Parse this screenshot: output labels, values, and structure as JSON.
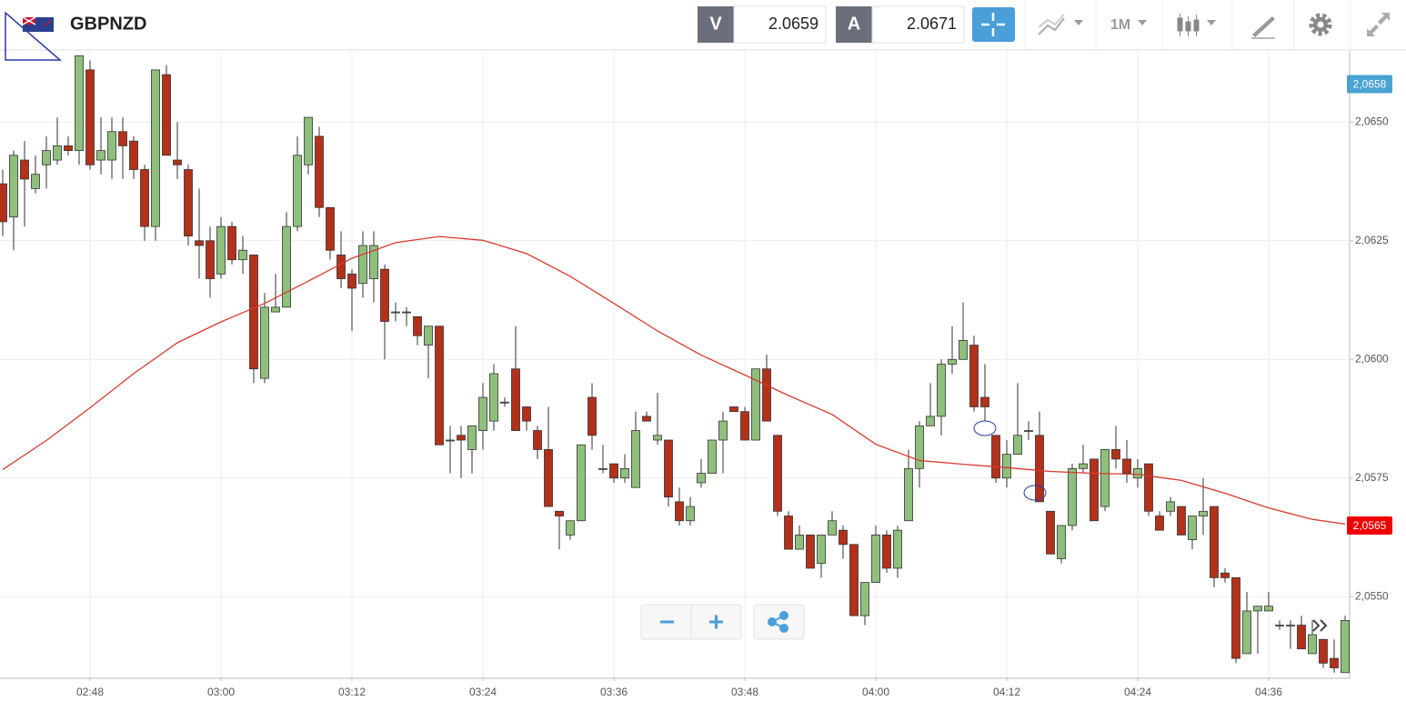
{
  "header": {
    "symbol": "GBPNZD",
    "bid_label": "V",
    "bid": "2.0659",
    "ask_label": "A",
    "ask": "2.0671",
    "timeframe": "1M"
  },
  "chart_data": {
    "type": "candlestick",
    "categories": [
      null,
      null,
      null,
      null,
      null,
      null,
      null,
      null,
      "02:48",
      null,
      null,
      null,
      null,
      null,
      null,
      null,
      null,
      null,
      null,
      null,
      "03:00",
      null,
      null,
      null,
      null,
      null,
      null,
      null,
      null,
      null,
      null,
      null,
      "03:12",
      null,
      null,
      null,
      null,
      null,
      null,
      null,
      null,
      null,
      null,
      null,
      "03:24",
      null,
      null,
      null,
      null,
      null,
      null,
      null,
      null,
      null,
      null,
      null,
      "03:36",
      null,
      null,
      null,
      null,
      null,
      null,
      null,
      null,
      null,
      null,
      null,
      "03:48",
      null,
      null,
      null,
      null,
      null,
      null,
      null,
      null,
      null,
      null,
      null,
      "04:00",
      null,
      null,
      null,
      null,
      null,
      null,
      null,
      null,
      null,
      null,
      null,
      "04:12",
      null,
      null,
      null,
      null,
      null,
      null,
      null,
      null,
      null,
      null,
      null,
      "04:24",
      null,
      null,
      null,
      null,
      null,
      null,
      null,
      null,
      null,
      null,
      null,
      "04:36",
      null,
      null,
      null,
      null,
      null,
      null,
      null
    ],
    "open": [
      2.0637,
      2.063,
      2.0642,
      2.0636,
      2.0641,
      2.0642,
      2.0645,
      2.0644,
      2.0661,
      2.0642,
      2.0642,
      2.0648,
      2.0646,
      2.064,
      2.0628,
      2.066,
      2.0642,
      2.064,
      2.0625,
      2.0625,
      2.0618,
      2.0628,
      2.0621,
      2.0622,
      2.0596,
      2.061,
      2.0611,
      2.0628,
      2.0641,
      2.0647,
      2.0632,
      2.0622,
      2.0618,
      2.0616,
      2.0617,
      2.0619,
      2.061,
      2.061,
      2.0609,
      2.0603,
      2.0607,
      2.0583,
      2.0584,
      2.0581,
      2.0585,
      2.0587,
      2.0591,
      2.0598,
      2.059,
      2.0585,
      2.0581,
      2.0568,
      2.0563,
      2.0566,
      2.0592,
      2.0577,
      2.0578,
      2.0575,
      2.0573,
      2.0588,
      2.0583,
      2.0583,
      2.057,
      2.0566,
      2.0574,
      2.0576,
      2.0583,
      2.059,
      2.0589,
      2.0583,
      2.0598,
      2.0584,
      2.0567,
      2.056,
      2.0563,
      2.0557,
      2.0563,
      2.0564,
      2.0561,
      2.0546,
      2.0553,
      2.0563,
      2.0556,
      2.0566,
      2.0577,
      2.0586,
      2.0588,
      2.0599,
      2.06,
      2.0603,
      2.0592,
      2.0584,
      2.0575,
      2.058,
      2.0585,
      2.0584,
      2.0568,
      2.0558,
      2.0565,
      2.0577,
      2.0579,
      2.0569,
      2.0581,
      2.0579,
      2.0575,
      2.0578,
      2.0567,
      2.0568,
      2.0569,
      2.0562,
      2.0567,
      2.0569,
      2.0555,
      2.0554,
      2.0538,
      2.0547,
      2.0547,
      2.0544,
      2.0544,
      2.0544,
      2.0538,
      2.0541,
      2.0537,
      2.0534
    ],
    "high": [
      2.064,
      2.0644,
      2.0646,
      2.0643,
      2.0647,
      2.0651,
      2.0647,
      2.0664,
      2.0663,
      2.0651,
      2.0651,
      2.0651,
      2.0647,
      2.0641,
      2.0661,
      2.0662,
      2.065,
      2.0641,
      2.0636,
      2.0628,
      2.063,
      2.0629,
      2.0626,
      2.0622,
      2.0614,
      2.0618,
      2.0631,
      2.0647,
      2.0651,
      2.0649,
      2.0632,
      2.0627,
      2.0619,
      2.0627,
      2.0627,
      2.062,
      2.0612,
      2.0611,
      2.0609,
      2.0607,
      2.0607,
      2.0586,
      2.0586,
      2.0586,
      2.0595,
      2.0599,
      2.0592,
      2.0607,
      2.059,
      2.0586,
      2.059,
      2.0568,
      2.0566,
      2.0582,
      2.0595,
      2.0582,
      2.0578,
      2.058,
      2.0589,
      2.0589,
      2.0593,
      2.0583,
      2.0573,
      2.0571,
      2.0579,
      2.0583,
      2.0589,
      2.059,
      2.059,
      2.0598,
      2.0601,
      2.0584,
      2.0568,
      2.0565,
      2.0563,
      2.0563,
      2.0568,
      2.0565,
      2.0561,
      2.0553,
      2.0565,
      2.0564,
      2.0565,
      2.0581,
      2.0587,
      2.0595,
      2.06,
      2.0607,
      2.0612,
      2.0605,
      2.0599,
      2.0584,
      2.0583,
      2.0595,
      2.0587,
      2.0589,
      2.0568,
      2.0565,
      2.0578,
      2.0582,
      2.0579,
      2.0581,
      2.0586,
      2.0583,
      2.0579,
      2.0578,
      2.0568,
      2.0571,
      2.0569,
      2.0567,
      2.0575,
      2.0569,
      2.0556,
      2.0554,
      2.0551,
      2.0548,
      2.0551,
      2.0545,
      2.0545,
      2.0546,
      2.0545,
      2.0541,
      2.0541,
      2.0546
    ],
    "low": [
      2.0626,
      2.0623,
      2.0628,
      2.0635,
      2.0636,
      2.0641,
      2.0643,
      2.0641,
      2.064,
      2.0639,
      2.0638,
      2.0638,
      2.0638,
      2.0625,
      2.0625,
      2.0643,
      2.0638,
      2.0624,
      2.0617,
      2.0613,
      2.0617,
      2.062,
      2.0618,
      2.0595,
      2.0595,
      2.061,
      2.0611,
      2.0627,
      2.0639,
      2.063,
      2.0621,
      2.0615,
      2.0606,
      2.0613,
      2.0612,
      2.06,
      2.0608,
      2.0607,
      2.0603,
      2.0596,
      2.0582,
      2.0576,
      2.0575,
      2.0576,
      2.0581,
      2.0585,
      2.059,
      2.0585,
      2.0585,
      2.0579,
      2.0569,
      2.056,
      2.0562,
      2.0566,
      2.0581,
      2.0576,
      2.0574,
      2.0574,
      2.0573,
      2.0587,
      2.0582,
      2.0569,
      2.0565,
      2.0565,
      2.0573,
      2.0576,
      2.0576,
      2.0589,
      2.0583,
      2.0583,
      2.0587,
      2.0567,
      2.056,
      2.056,
      2.0556,
      2.0554,
      2.0563,
      2.0558,
      2.0546,
      2.0544,
      2.0553,
      2.0555,
      2.0554,
      2.0566,
      2.0573,
      2.0586,
      2.0584,
      2.0597,
      2.06,
      2.0589,
      2.0587,
      2.0574,
      2.0573,
      2.058,
      2.0583,
      2.057,
      2.0559,
      2.0557,
      2.0564,
      2.0576,
      2.0566,
      2.0568,
      2.0577,
      2.0574,
      2.0573,
      2.0567,
      2.0564,
      2.0567,
      2.0563,
      2.056,
      2.0563,
      2.0552,
      2.0553,
      2.0536,
      2.0538,
      2.0538,
      2.0547,
      2.0543,
      2.0539,
      2.0539,
      2.0538,
      2.0535,
      2.0534,
      2.0534
    ],
    "close": [
      2.0629,
      2.0643,
      2.0638,
      2.0639,
      2.0644,
      2.0645,
      2.0644,
      2.0664,
      2.0641,
      2.0644,
      2.0648,
      2.0645,
      2.064,
      2.0628,
      2.0661,
      2.0643,
      2.0641,
      2.0626,
      2.0624,
      2.0617,
      2.0628,
      2.0621,
      2.0623,
      2.0598,
      2.0611,
      2.0611,
      2.0628,
      2.0643,
      2.0651,
      2.0632,
      2.0623,
      2.0617,
      2.0615,
      2.0624,
      2.0624,
      2.0608,
      2.061,
      2.061,
      2.0605,
      2.0607,
      2.0582,
      2.0583,
      2.0583,
      2.0586,
      2.0592,
      2.0597,
      2.0591,
      2.0585,
      2.0587,
      2.0581,
      2.0569,
      2.0567,
      2.0566,
      2.0582,
      2.0584,
      2.0577,
      2.0575,
      2.0577,
      2.0585,
      2.0587,
      2.0584,
      2.0571,
      2.0566,
      2.0569,
      2.0576,
      2.0583,
      2.0587,
      2.0589,
      2.0583,
      2.0598,
      2.0587,
      2.0568,
      2.056,
      2.0563,
      2.0556,
      2.0563,
      2.0566,
      2.0561,
      2.0546,
      2.0553,
      2.0563,
      2.0556,
      2.0564,
      2.0577,
      2.0586,
      2.0588,
      2.0599,
      2.06,
      2.0604,
      2.059,
      2.059,
      2.0575,
      2.058,
      2.0584,
      2.0585,
      2.057,
      2.0559,
      2.0565,
      2.0577,
      2.0578,
      2.0566,
      2.0581,
      2.0579,
      2.0576,
      2.0577,
      2.0568,
      2.0564,
      2.057,
      2.0563,
      2.0567,
      2.0568,
      2.0554,
      2.0554,
      2.0537,
      2.0547,
      2.0548,
      2.0548,
      2.0544,
      2.0544,
      2.0539,
      2.0542,
      2.0536,
      2.0535,
      2.0545
    ],
    "up_color": "#8fbf7c",
    "down_color": "#b3301b",
    "overlay": {
      "color": "#d9392e",
      "x": [
        0,
        4,
        8,
        12,
        16,
        20,
        24,
        28,
        32,
        36,
        40,
        44,
        48,
        52,
        56,
        60,
        64,
        68,
        72,
        76,
        80,
        84,
        88,
        92,
        96,
        100,
        104,
        108,
        112,
        116,
        120,
        123
      ],
      "values": [
        2.05768,
        2.05829,
        2.05898,
        2.0597,
        2.06035,
        2.06079,
        2.06118,
        2.06165,
        2.06213,
        2.06246,
        2.06259,
        2.06251,
        2.06223,
        2.06175,
        2.06118,
        2.0606,
        2.06009,
        2.05967,
        2.05924,
        2.05884,
        2.05821,
        2.05787,
        2.05779,
        2.05772,
        2.05764,
        2.0576,
        2.05758,
        2.05745,
        2.05718,
        2.05687,
        2.05663,
        2.05653
      ]
    },
    "price_markers": [
      {
        "value": 2.0658,
        "label": "2,0658",
        "color": "#4aa3d3"
      },
      {
        "value": 2.0565,
        "label": "2,0565",
        "color": "#ee0000"
      }
    ],
    "ylim": [
      2.0533,
      2.0665
    ],
    "yticks": [
      {
        "value": 2.065,
        "label": "2,0650"
      },
      {
        "value": 2.0625,
        "label": "2,0625"
      },
      {
        "value": 2.06,
        "label": "2,0600"
      },
      {
        "value": 2.0575,
        "label": "2,0575"
      },
      {
        "value": 2.055,
        "label": "2,0550"
      }
    ],
    "grid": true
  }
}
